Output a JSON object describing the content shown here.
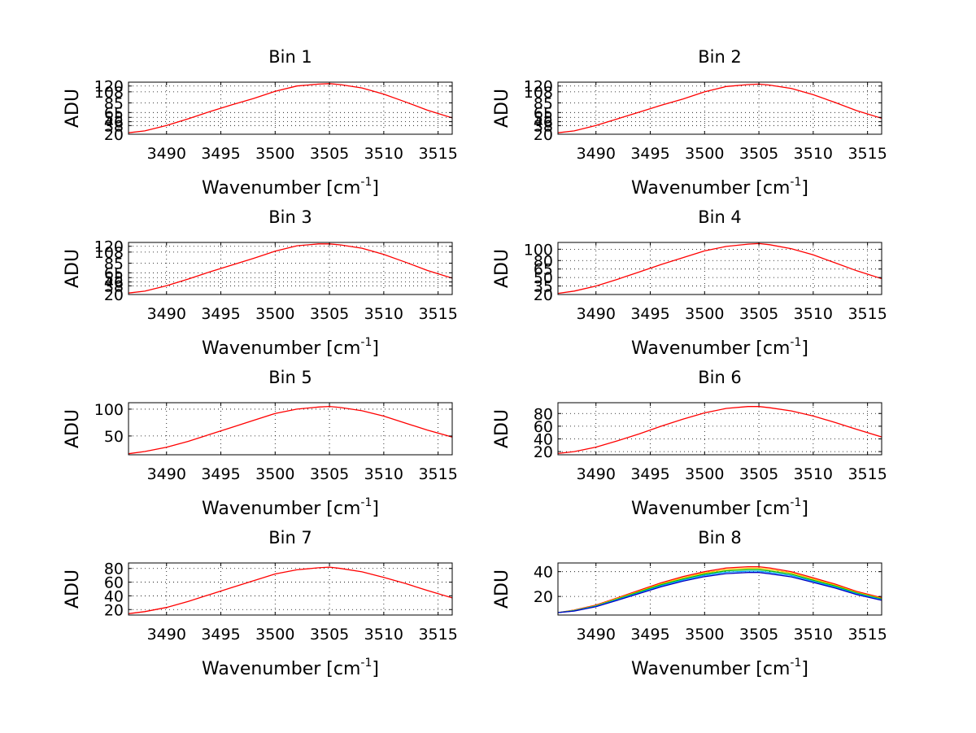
{
  "figure": {
    "background": "#ffffff"
  },
  "chart_data": [
    {
      "type": "line",
      "title": "Bin 1",
      "xlabel": "Wavenumber [cm",
      "xlabel_sup": "-1",
      "xlabel_close": "]",
      "ylabel": "ADU",
      "xlim": [
        3486.5,
        3516.3
      ],
      "ylim": [
        20,
        128
      ],
      "xticks": [
        3490,
        3495,
        3500,
        3505,
        3510,
        3515
      ],
      "yticks": [
        20,
        38,
        46,
        55,
        65,
        85,
        108,
        120
      ],
      "ytick_labels": [
        "20",
        "38",
        "46",
        "55",
        "65",
        "85",
        "108",
        "120"
      ],
      "grid": true,
      "series": [
        {
          "color": "#ff0000",
          "x": [
            3486.5,
            3488,
            3490,
            3492,
            3494,
            3496,
            3498,
            3500,
            3502,
            3504,
            3505,
            3506,
            3508,
            3510,
            3512,
            3514,
            3516.3
          ],
          "y": [
            23,
            27,
            38,
            52,
            67,
            81,
            94,
            109,
            120,
            124,
            125,
            123,
            116,
            103,
            87,
            70,
            54
          ]
        }
      ]
    },
    {
      "type": "line",
      "title": "Bin 2",
      "xlabel": "Wavenumber [cm",
      "xlabel_sup": "-1",
      "xlabel_close": "]",
      "ylabel": "ADU",
      "xlim": [
        3486.5,
        3516.3
      ],
      "ylim": [
        20,
        128
      ],
      "xticks": [
        3490,
        3495,
        3500,
        3505,
        3510,
        3515
      ],
      "yticks": [
        20,
        38,
        46,
        55,
        65,
        85,
        108,
        120
      ],
      "ytick_labels": [
        "20",
        "38",
        "46",
        "55",
        "65",
        "85",
        "108",
        "120"
      ],
      "grid": true,
      "series": [
        {
          "color": "#ff0000",
          "x": [
            3486.5,
            3488,
            3490,
            3492,
            3494,
            3496,
            3498,
            3500,
            3502,
            3504,
            3505,
            3506,
            3508,
            3510,
            3512,
            3514,
            3516.3
          ],
          "y": [
            23,
            27,
            38,
            52,
            66,
            80,
            93,
            108,
            119,
            123,
            124,
            122,
            115,
            102,
            86,
            69,
            53
          ]
        }
      ]
    },
    {
      "type": "line",
      "title": "Bin 3",
      "xlabel": "Wavenumber [cm",
      "xlabel_sup": "-1",
      "xlabel_close": "]",
      "ylabel": "ADU",
      "xlim": [
        3486.5,
        3516.3
      ],
      "ylim": [
        20,
        128
      ],
      "xticks": [
        3490,
        3495,
        3500,
        3505,
        3510,
        3515
      ],
      "yticks": [
        20,
        38,
        46,
        55,
        65,
        85,
        108,
        120
      ],
      "ytick_labels": [
        "20",
        "38",
        "46",
        "55",
        "65",
        "85",
        "108",
        "120"
      ],
      "grid": true,
      "series": [
        {
          "color": "#ff0000",
          "x": [
            3486.5,
            3488,
            3490,
            3492,
            3494,
            3496,
            3498,
            3500,
            3502,
            3504,
            3505,
            3506,
            3508,
            3510,
            3512,
            3514,
            3516.3
          ],
          "y": [
            23,
            27,
            38,
            52,
            67,
            81,
            95,
            110,
            121,
            125,
            125,
            123,
            116,
            103,
            87,
            70,
            54
          ]
        }
      ]
    },
    {
      "type": "line",
      "title": "Bin 4",
      "xlabel": "Wavenumber [cm",
      "xlabel_sup": "-1",
      "xlabel_close": "]",
      "ylabel": "ADU",
      "xlim": [
        3486.5,
        3516.3
      ],
      "ylim": [
        20,
        112
      ],
      "xticks": [
        3490,
        3495,
        3500,
        3505,
        3510,
        3515
      ],
      "yticks": [
        20,
        35,
        50,
        65,
        80,
        100
      ],
      "ytick_labels": [
        "20",
        "35",
        "50",
        "65",
        "80",
        "100"
      ],
      "grid": true,
      "series": [
        {
          "color": "#ff0000",
          "x": [
            3486.5,
            3488,
            3490,
            3492,
            3494,
            3496,
            3498,
            3500,
            3502,
            3504,
            3505,
            3506,
            3508,
            3510,
            3512,
            3514,
            3516.3
          ],
          "y": [
            22,
            26,
            35,
            47,
            60,
            73,
            85,
            97,
            105,
            109,
            110,
            108,
            101,
            90,
            76,
            62,
            48
          ]
        }
      ]
    },
    {
      "type": "line",
      "title": "Bin 5",
      "xlabel": "Wavenumber [cm",
      "xlabel_sup": "-1",
      "xlabel_close": "]",
      "ylabel": "ADU",
      "xlim": [
        3486.5,
        3516.3
      ],
      "ylim": [
        15,
        112
      ],
      "xticks": [
        3490,
        3495,
        3500,
        3505,
        3510,
        3515
      ],
      "yticks": [
        50,
        100
      ],
      "ytick_labels": [
        "50",
        "100"
      ],
      "grid": true,
      "series": [
        {
          "color": "#ff0000",
          "x": [
            3486.5,
            3488,
            3490,
            3492,
            3494,
            3496,
            3498,
            3500,
            3502,
            3504,
            3505,
            3506,
            3508,
            3510,
            3512,
            3514,
            3516.3
          ],
          "y": [
            17,
            21,
            29,
            40,
            53,
            66,
            79,
            92,
            100,
            104,
            105,
            103,
            97,
            87,
            74,
            61,
            48
          ]
        }
      ]
    },
    {
      "type": "line",
      "title": "Bin 6",
      "xlabel": "Wavenumber [cm",
      "xlabel_sup": "-1",
      "xlabel_close": "]",
      "ylabel": "ADU",
      "xlim": [
        3486.5,
        3516.3
      ],
      "ylim": [
        15,
        97
      ],
      "xticks": [
        3490,
        3495,
        3500,
        3505,
        3510,
        3515
      ],
      "yticks": [
        20,
        40,
        60,
        80
      ],
      "ytick_labels": [
        "20",
        "40",
        "60",
        "80"
      ],
      "grid": true,
      "series": [
        {
          "color": "#ff0000",
          "x": [
            3486.5,
            3488,
            3490,
            3492,
            3494,
            3496,
            3498,
            3500,
            3502,
            3504,
            3505,
            3506,
            3508,
            3510,
            3512,
            3514,
            3516.3
          ],
          "y": [
            17,
            20,
            27,
            37,
            48,
            60,
            71,
            81,
            88,
            91,
            91,
            89,
            84,
            76,
            66,
            55,
            43
          ]
        }
      ]
    },
    {
      "type": "line",
      "title": "Bin 7",
      "xlabel": "Wavenumber [cm",
      "xlabel_sup": "-1",
      "xlabel_close": "]",
      "ylabel": "ADU",
      "xlim": [
        3486.5,
        3516.3
      ],
      "ylim": [
        12,
        88
      ],
      "xticks": [
        3490,
        3495,
        3500,
        3505,
        3510,
        3515
      ],
      "yticks": [
        20,
        40,
        60,
        80
      ],
      "ytick_labels": [
        "20",
        "40",
        "60",
        "80"
      ],
      "grid": true,
      "series": [
        {
          "color": "#ff0000",
          "x": [
            3486.5,
            3488,
            3490,
            3492,
            3494,
            3496,
            3498,
            3500,
            3502,
            3504,
            3505,
            3506,
            3508,
            3510,
            3512,
            3514,
            3516.3
          ],
          "y": [
            14,
            17,
            23,
            32,
            42,
            52,
            62,
            72,
            78,
            81,
            82,
            80,
            75,
            67,
            58,
            48,
            37
          ]
        }
      ]
    },
    {
      "type": "line",
      "title": "Bin 8",
      "xlabel": "Wavenumber [cm",
      "xlabel_sup": "-1",
      "xlabel_close": "]",
      "ylabel": "ADU",
      "xlim": [
        3486.5,
        3516.3
      ],
      "ylim": [
        5,
        47
      ],
      "xticks": [
        3490,
        3495,
        3500,
        3505,
        3510,
        3515
      ],
      "yticks": [
        20,
        40
      ],
      "ytick_labels": [
        "20",
        "40"
      ],
      "grid": true,
      "series": [
        {
          "color": "#ff0000",
          "x": [
            3486.5,
            3488,
            3490,
            3492,
            3494,
            3496,
            3498,
            3500,
            3502,
            3504,
            3505,
            3506,
            3508,
            3510,
            3512,
            3514,
            3516.3
          ],
          "y": [
            7,
            9,
            13,
            19,
            25,
            31,
            36,
            40,
            43,
            44,
            44,
            43,
            40,
            35,
            30,
            24,
            19
          ]
        },
        {
          "color": "#ffbf00",
          "x": [
            3486.5,
            3488,
            3490,
            3492,
            3494,
            3496,
            3498,
            3500,
            3502,
            3504,
            3505,
            3506,
            3508,
            3510,
            3512,
            3514,
            3516.3
          ],
          "y": [
            7,
            8.8,
            12.6,
            18.5,
            24.3,
            30.2,
            35,
            39,
            41.8,
            42.8,
            42.8,
            41.8,
            39,
            34,
            29.2,
            23.3,
            18.4
          ]
        },
        {
          "color": "#00c000",
          "x": [
            3486.5,
            3488,
            3490,
            3492,
            3494,
            3496,
            3498,
            3500,
            3502,
            3504,
            3505,
            3506,
            3508,
            3510,
            3512,
            3514,
            3516.3
          ],
          "y": [
            7,
            8.6,
            12.3,
            18,
            23.7,
            29.4,
            34.1,
            38,
            40.7,
            41.6,
            41.6,
            40.6,
            37.9,
            33.1,
            28.4,
            22.7,
            17.9
          ]
        },
        {
          "color": "#00a0ff",
          "x": [
            3486.5,
            3488,
            3490,
            3492,
            3494,
            3496,
            3498,
            3500,
            3502,
            3504,
            3505,
            3506,
            3508,
            3510,
            3512,
            3514,
            3516.3
          ],
          "y": [
            7,
            8.4,
            12,
            17.5,
            23,
            28.6,
            33.2,
            37,
            39.5,
            40.4,
            40.4,
            39.4,
            36.8,
            32.2,
            27.6,
            22.1,
            17.4
          ]
        },
        {
          "color": "#0000c0",
          "x": [
            3486.5,
            3488,
            3490,
            3492,
            3494,
            3496,
            3498,
            3500,
            3502,
            3504,
            3505,
            3506,
            3508,
            3510,
            3512,
            3514,
            3516.3
          ],
          "y": [
            7,
            8.2,
            11.7,
            17,
            22.4,
            27.8,
            32.3,
            36,
            38.4,
            39.3,
            39.3,
            38.3,
            35.8,
            31.3,
            26.8,
            21.5,
            16.9
          ]
        }
      ]
    }
  ]
}
